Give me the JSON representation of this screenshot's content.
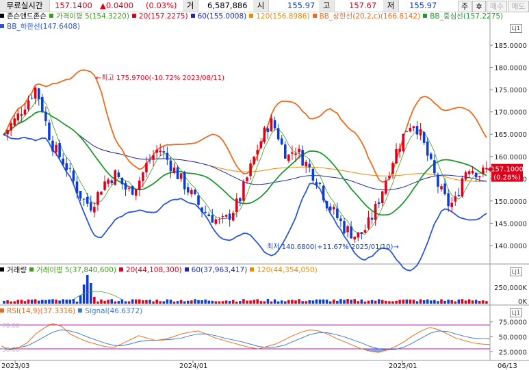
{
  "header": {
    "realtime_label": "무료실시간",
    "price": "157.1400",
    "change": "▲0.0400",
    "change_pct": "(0.03%)",
    "volume_label": "거",
    "volume": "6,587,886",
    "open_label": "시",
    "open": "155.97",
    "high_label": "고",
    "high": "157.67",
    "low_label": "저",
    "low": "155.97",
    "btn_main": "주",
    "btn_settings_icon": "gear-icon",
    "btn_buy": "매수",
    "btn_sell": "매도"
  },
  "colors": {
    "up": "#e0001b",
    "down": "#0b3dd6",
    "ma5": "#3c9e1a",
    "ma20": "#e0001b",
    "ma60": "#1c2bb0",
    "ma120": "#f08a00",
    "bb_upper": "#f06a1a",
    "bb_mid": "#1a9a2a",
    "bb_lower": "#2a55e0",
    "rsi": "#f06a1a",
    "signal": "#3a78d8",
    "guide": "#d000d0"
  },
  "legend_price": [
    {
      "text": "존슨앤드존슨",
      "color": "#000000"
    },
    {
      "text": "가격이평 5(154.3220)",
      "color": "#3c9e1a"
    },
    {
      "text": "20(157.2275)",
      "color": "#e0001b"
    },
    {
      "text": "60(155.0008)",
      "color": "#1c2bb0"
    },
    {
      "text": "120(156.8986)",
      "color": "#f08a00"
    },
    {
      "text": "BB_상한선(20,2,c)(166.8142)",
      "color": "#f06a1a"
    },
    {
      "text": "BB_중심선(157.2275)",
      "color": "#1a9a2a"
    }
  ],
  "legend_price_2": [
    {
      "text": "BB_하한선(147.6408)",
      "color": "#2a55e0"
    }
  ],
  "legend_volume": [
    {
      "text": "거래량",
      "color": "#000000"
    },
    {
      "text": "거래이평 5(37,840,600)",
      "color": "#3c9e1a"
    },
    {
      "text": "20(44,108,300)",
      "color": "#e0001b"
    },
    {
      "text": "60(37,963,417)",
      "color": "#1c2bb0"
    },
    {
      "text": "120(44,354,050)",
      "color": "#f08a00"
    }
  ],
  "legend_rsi": [
    {
      "text": "RSI(14,9)(37.3316)",
      "color": "#f06a1a"
    },
    {
      "text": "Signal(46.6372)",
      "color": "#3a78d8"
    }
  ],
  "chart_data": {
    "type": "candlestick",
    "price_axis": {
      "ticks": [
        "185.0000",
        "180.0000",
        "175.0000",
        "170.0000",
        "165.0000",
        "160.0000",
        "155.0000",
        "150.0000",
        "145.0000",
        "140.0000"
      ],
      "ylim": [
        136,
        189
      ]
    },
    "volume_axis": {
      "ticks": [
        "250,000K",
        "0K"
      ]
    },
    "rsi_axis": {
      "ticks": [
        "75.0000",
        "50.0000",
        "25.0000"
      ],
      "ylim": [
        14,
        85
      ],
      "upper_guide": 70,
      "lower_guide": 30
    },
    "rsi_guide_labels": {
      "upper": "70.00",
      "lower": "30.00"
    },
    "x_ticks": [
      "2023/03",
      "2024/01",
      "2025/01",
      "06/13"
    ],
    "current_price_tag": {
      "price": "157.1000",
      "pct": "(0.28%)"
    },
    "annotations": {
      "high": "←최고 175.9700(-10.72% 2023/08/11)",
      "low": "최저 140.6800(+11.67% 2025/01/10)→"
    },
    "price_series": [
      165,
      167,
      168.5,
      171,
      173,
      175.5,
      172,
      166,
      162,
      160,
      158,
      155,
      152,
      150,
      149,
      151,
      154,
      155,
      156,
      154,
      152,
      153,
      155,
      158,
      160,
      162,
      160,
      158,
      156,
      154,
      152,
      150,
      148,
      147,
      146,
      145,
      146,
      148,
      150,
      154,
      158,
      162,
      165,
      168,
      166,
      162,
      160,
      162,
      160,
      158,
      156,
      154,
      150,
      148,
      146,
      144,
      143,
      142,
      143,
      145,
      148,
      152,
      156,
      160,
      163,
      166,
      168,
      166,
      162,
      158,
      154,
      151,
      149,
      150,
      155,
      158,
      157,
      156,
      157
    ],
    "rsi_series": [
      35,
      28,
      32,
      40,
      55,
      65,
      72,
      68,
      55,
      48,
      42,
      38,
      34,
      32,
      38,
      45,
      52,
      48,
      44,
      46,
      50,
      55,
      58,
      60,
      54,
      48,
      44,
      40,
      36,
      32,
      30,
      34,
      38,
      45,
      52,
      58,
      62,
      60,
      55,
      48,
      42,
      36,
      30,
      26,
      24,
      28,
      34,
      42,
      52,
      60,
      66,
      62,
      55,
      48,
      44,
      40,
      38,
      37
    ],
    "signal_series": [
      30,
      30,
      32,
      35,
      42,
      50,
      58,
      62,
      60,
      56,
      50,
      45,
      40,
      36,
      35,
      38,
      42,
      44,
      44,
      45,
      46,
      48,
      52,
      55,
      55,
      52,
      48,
      45,
      42,
      38,
      34,
      32,
      33,
      36,
      42,
      48,
      54,
      57,
      57,
      54,
      50,
      45,
      40,
      34,
      30,
      28,
      29,
      33,
      40,
      48,
      56,
      60,
      59,
      55,
      51,
      48,
      47,
      46.6
    ]
  }
}
